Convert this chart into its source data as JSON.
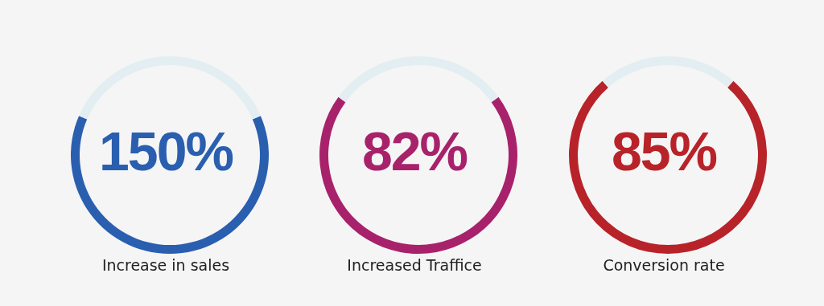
{
  "chart_data": [
    {
      "type": "donut",
      "categories": [
        null,
        null
      ],
      "values": [
        63,
        37
      ],
      "colors": [
        "#2a5fb0",
        "#e3eef2"
      ],
      "annotations": [
        "150%"
      ],
      "xlabel": "Increase in sales"
    },
    {
      "type": "donut",
      "categories": [
        null,
        null
      ],
      "values": [
        70,
        30
      ],
      "colors": [
        "#a8226b",
        "#e3eef2"
      ],
      "annotations": [
        "82%"
      ],
      "xlabel": "Increased Traffice"
    },
    {
      "type": "donut",
      "categories": [
        null,
        null
      ],
      "values": [
        77,
        23
      ],
      "colors": [
        "#b8232a",
        "#e3eef2"
      ],
      "annotations": [
        "85%"
      ],
      "xlabel": "Conversion rate"
    }
  ]
}
